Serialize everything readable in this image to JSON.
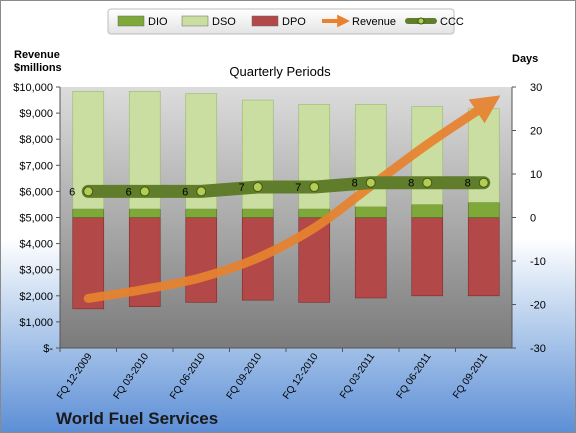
{
  "chart_data": {
    "type": "bar",
    "title": "Quarterly Periods",
    "company": "World Fuel Services",
    "left_axis": {
      "label_line1": "Revenue",
      "label_line2": "$millions",
      "ylim": [
        0,
        10000
      ],
      "ticks": [
        "$-",
        "$1,000",
        "$2,000",
        "$3,000",
        "$4,000",
        "$5,000",
        "$6,000",
        "$7,000",
        "$8,000",
        "$9,000",
        "$10,000"
      ]
    },
    "right_axis": {
      "label": "Days",
      "ylim": [
        -30,
        30
      ],
      "ticks": [
        "-30",
        "-20",
        "-10",
        "0",
        "10",
        "20",
        "30"
      ]
    },
    "categories": [
      "FQ 12-2009",
      "FQ 03-2010",
      "FQ 06-2010",
      "FQ 09-2010",
      "FQ 12-2010",
      "FQ 03-2011",
      "FQ 06-2011",
      "FQ 09-2011"
    ],
    "series": [
      {
        "name": "DIO",
        "axis": "right",
        "color": "#7fa83a",
        "values": [
          2,
          2,
          2,
          2,
          2,
          2.5,
          3,
          3.5
        ]
      },
      {
        "name": "DSO",
        "axis": "right",
        "color": "#c9dea0",
        "values": [
          27,
          27,
          26.5,
          25,
          24,
          23.5,
          22.5,
          21.5
        ]
      },
      {
        "name": "DPO",
        "axis": "right",
        "color": "#b34848",
        "values": [
          -21,
          -20.5,
          -19.5,
          -19,
          -19.5,
          -18.5,
          -18,
          -18
        ]
      },
      {
        "name": "Revenue",
        "axis": "left",
        "color": "#e8822e",
        "values": [
          1900,
          2250,
          2700,
          3450,
          4600,
          6200,
          7800,
          9250
        ]
      },
      {
        "name": "CCC",
        "axis": "right",
        "color": "#5f7d2a",
        "values": [
          6,
          6,
          6,
          7,
          7,
          8,
          8,
          8
        ],
        "labels": [
          "6",
          "6",
          "6",
          "7",
          "7",
          "8",
          "8",
          "8"
        ]
      }
    ],
    "legend": {
      "position": "top"
    },
    "grid": false
  }
}
